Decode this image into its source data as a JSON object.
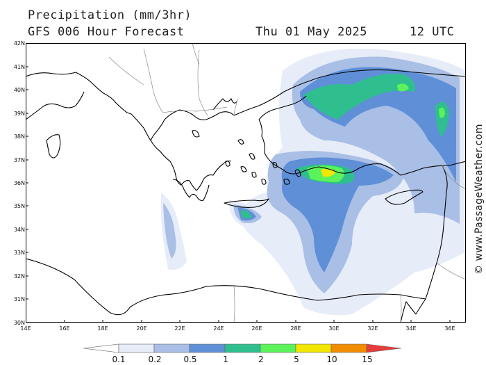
{
  "header": {
    "title": "Precipitation (mm/3hr)",
    "subtitle": "GFS 006 Hour Forecast",
    "datetime": "Thu 01 May 2025",
    "utc": "12 UTC"
  },
  "credit": "© www.PassageWeather.com",
  "axes": {
    "lat_labels": [
      "42N",
      "41N",
      "40N",
      "39N",
      "38N",
      "37N",
      "36N",
      "35N",
      "34N",
      "33N",
      "32N",
      "31N",
      "30N"
    ],
    "lon_labels": [
      "14E",
      "16E",
      "18E",
      "20E",
      "22E",
      "24E",
      "26E",
      "28E",
      "30E",
      "32E",
      "34E",
      "36E"
    ]
  },
  "legend": {
    "labels": [
      "0.1",
      "0.2",
      "0.5",
      "1",
      "2",
      "5",
      "10",
      "15"
    ],
    "colors": [
      "#ffffff",
      "#e6ecf8",
      "#a9bfe6",
      "#5f8fd6",
      "#2fbf8f",
      "#5cf25c",
      "#f2e600",
      "#f28c00",
      "#e63c3c"
    ]
  },
  "colors": {
    "coast": "#000000",
    "border": "#8a8a8a",
    "frame": "#000000"
  }
}
